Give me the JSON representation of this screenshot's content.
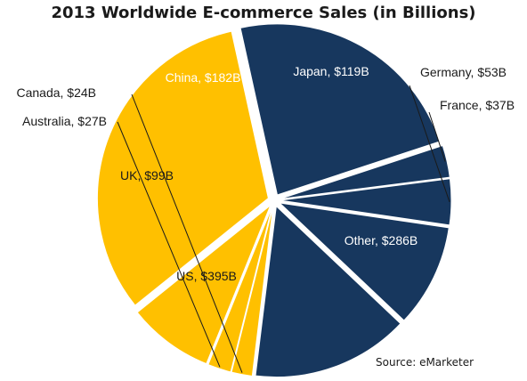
{
  "chart_data": {
    "type": "pie",
    "title": "2013 Worldwide E-commerce  Sales (in Billions)",
    "source": "Source:  eMarketer",
    "slices": [
      {
        "label": "Canada, $24B",
        "value": 24,
        "color": "#FFC000"
      },
      {
        "label": "Australia, $27B",
        "value": 27,
        "color": "#FFC000"
      },
      {
        "label": "UK, $99B",
        "value": 99,
        "color": "#FFC000"
      },
      {
        "label": "US, $395B",
        "value": 395,
        "color": "#FFC000"
      },
      {
        "label": "Other, $286B",
        "value": 286,
        "color": "#17375E"
      },
      {
        "label": "France, $37B",
        "value": 37,
        "color": "#17375E"
      },
      {
        "label": "Germany, $53B",
        "value": 53,
        "color": "#17375E"
      },
      {
        "label": "Japan, $119B",
        "value": 119,
        "color": "#17375E"
      },
      {
        "label": "China, $182B",
        "value": 182,
        "color": "#17375E"
      }
    ]
  }
}
